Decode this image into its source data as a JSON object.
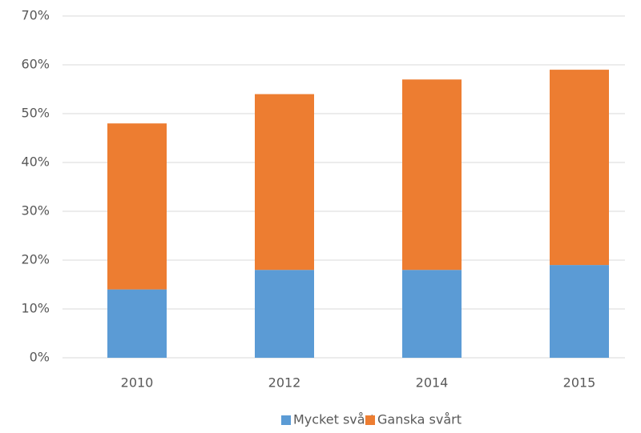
{
  "chart_data": {
    "type": "stacked_bar",
    "categories": [
      "2010",
      "2012",
      "2014",
      "2015"
    ],
    "series": [
      {
        "name": "Mycket svårt",
        "color": "#5b9bd5",
        "values": [
          14,
          18,
          18,
          19
        ]
      },
      {
        "name": "Ganska svårt",
        "color": "#ed7d31",
        "values": [
          34,
          36,
          39,
          40
        ]
      }
    ],
    "ylim": [
      0,
      70
    ],
    "yticks": [
      {
        "value": 0,
        "label": "0%"
      },
      {
        "value": 10,
        "label": "10%"
      },
      {
        "value": 20,
        "label": "20%"
      },
      {
        "value": 30,
        "label": "30%"
      },
      {
        "value": 40,
        "label": "40%"
      },
      {
        "value": 50,
        "label": "50%"
      },
      {
        "value": 60,
        "label": "60%"
      },
      {
        "value": 70,
        "label": "70%"
      }
    ],
    "grid": true,
    "legend": "bottom"
  }
}
